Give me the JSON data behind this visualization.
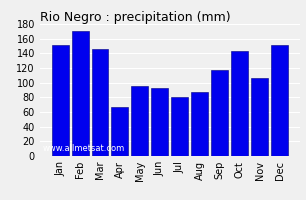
{
  "title": "Rio Negro : precipitation (mm)",
  "months": [
    "Jan",
    "Feb",
    "Mar",
    "Apr",
    "May",
    "Jun",
    "Jul",
    "Aug",
    "Sep",
    "Oct",
    "Nov",
    "Dec"
  ],
  "values": [
    151,
    170,
    146,
    67,
    96,
    93,
    80,
    87,
    117,
    143,
    106,
    152
  ],
  "bar_color": "#0000EE",
  "bar_edge_color": "#000080",
  "ylim": [
    0,
    180
  ],
  "yticks": [
    0,
    20,
    40,
    60,
    80,
    100,
    120,
    140,
    160,
    180
  ],
  "background_color": "#f0f0f0",
  "plot_bg_color": "#f0f0f0",
  "grid_color": "#ffffff",
  "title_fontsize": 9,
  "tick_fontsize": 7,
  "watermark": "www.allmetsat.com",
  "watermark_fontsize": 6,
  "watermark_color": "#ffffff"
}
